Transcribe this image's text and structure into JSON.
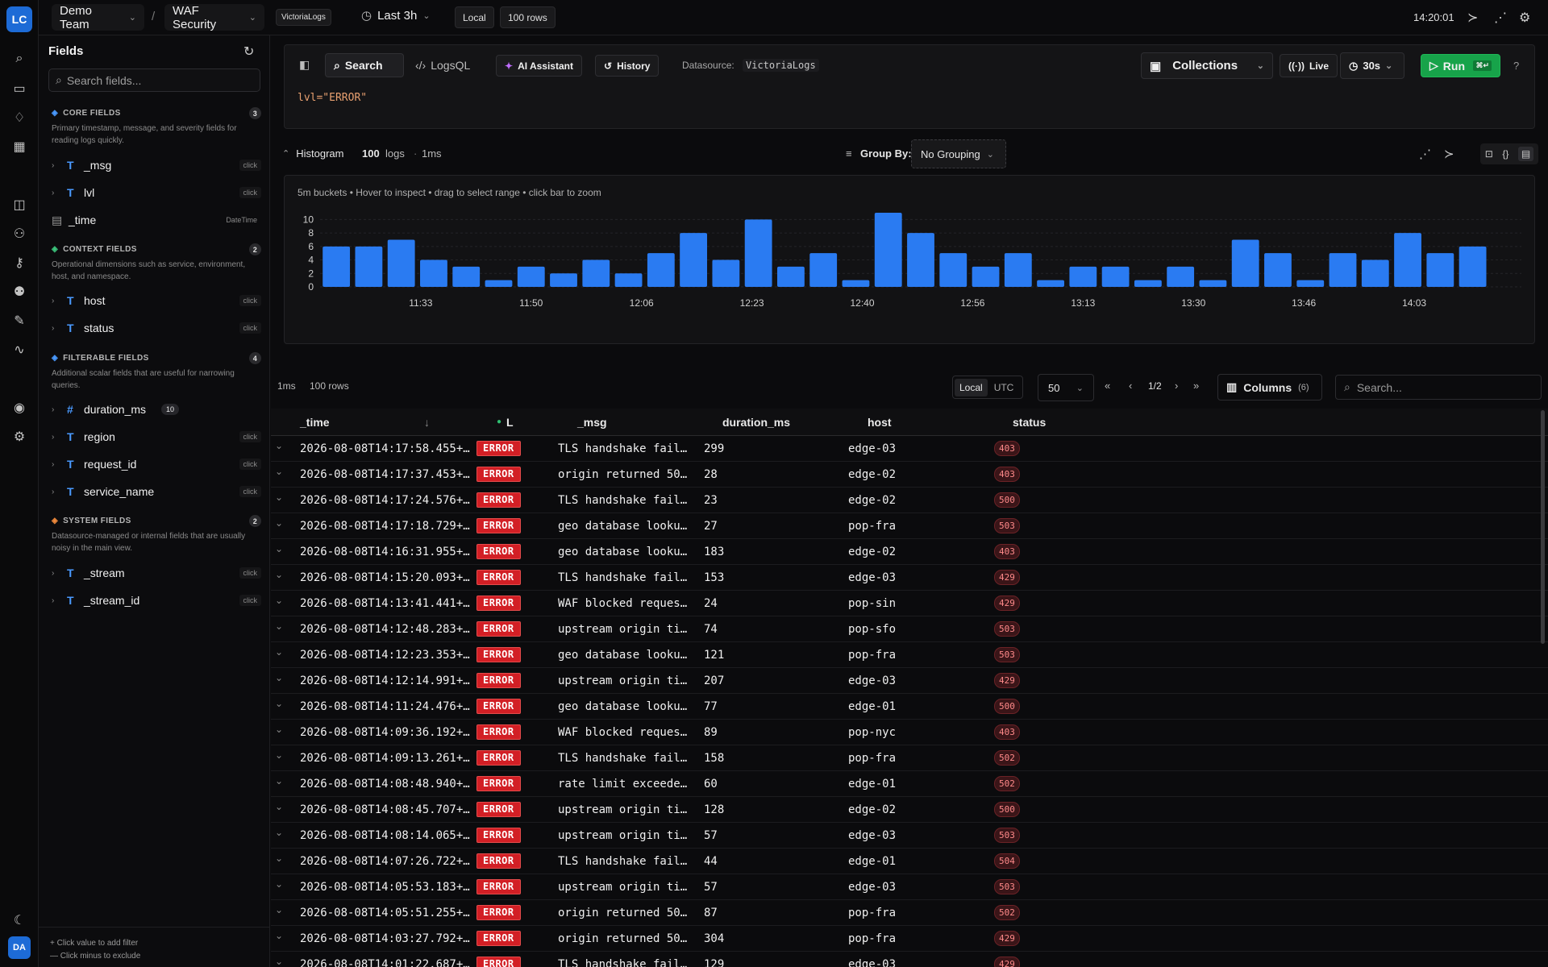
{
  "app": {
    "logo": "LC",
    "user_initials": "DA"
  },
  "topbar": {
    "team": "Demo Team",
    "separator": "/",
    "dashboard": "WAF Security",
    "datasource_badge": "VictoriaLogs",
    "time_range": "Last 3h",
    "tz_badge": "Local",
    "rows_badge": "100 rows",
    "clock": "14:20:01"
  },
  "sidebar": {
    "title": "Fields",
    "search_placeholder": "Search fields...",
    "sections": [
      {
        "title": "CORE FIELDS",
        "count": "3",
        "desc": "Primary timestamp, message, and severity fields for reading logs quickly."
      },
      {
        "title": "CONTEXT FIELDS",
        "count": "2",
        "desc": "Operational dimensions such as service, environment, host, and namespace."
      },
      {
        "title": "FILTERABLE FIELDS",
        "count": "4",
        "desc": "Additional scalar fields that are useful for narrowing queries."
      },
      {
        "title": "SYSTEM FIELDS",
        "count": "2",
        "desc": "Datasource-managed or internal fields that are usually noisy in the main view."
      }
    ],
    "fields": [
      {
        "name": "_msg",
        "type": "T",
        "hint": "click"
      },
      {
        "name": "lvl",
        "type": "T",
        "hint": "click"
      },
      {
        "name": "_time",
        "type": "cal",
        "hint": "DateTime"
      },
      {
        "name": "host",
        "type": "T",
        "hint": "click"
      },
      {
        "name": "status",
        "type": "T",
        "hint": "click"
      },
      {
        "name": "duration_ms",
        "type": "#",
        "hint": "10"
      },
      {
        "name": "region",
        "type": "T",
        "hint": "click"
      },
      {
        "name": "request_id",
        "type": "T",
        "hint": "click"
      },
      {
        "name": "service_name",
        "type": "T",
        "hint": "click"
      },
      {
        "name": "_stream",
        "type": "T",
        "hint": "click"
      },
      {
        "name": "_stream_id",
        "type": "T",
        "hint": "click"
      }
    ],
    "footer_1": "Click value to add filter",
    "footer_2": "Click minus to exclude"
  },
  "query": {
    "tab_search": "Search",
    "tab_logsql": "LogsQL",
    "ai_label": "AI Assistant",
    "history_label": "History",
    "datasource_label": "Datasource:",
    "datasource_value": "VictoriaLogs",
    "collections_label": "Collections",
    "live_label": "Live",
    "interval_label": "30s",
    "run_label": "Run",
    "run_shortcut": "⌘↵",
    "text": "lvl=\"ERROR\""
  },
  "histogram": {
    "label": "Histogram",
    "count": "100",
    "count_unit": "logs",
    "duration": "1ms",
    "groupby_label": "Group By:",
    "groupby_value": "No Grouping",
    "hint": "5m buckets • Hover to inspect • drag to select range • click bar to zoom"
  },
  "chart_data": {
    "type": "bar",
    "categories": [
      "11:20",
      "11:25",
      "11:30",
      "11:35",
      "11:40",
      "11:45",
      "11:50",
      "11:55",
      "12:00",
      "12:05",
      "12:10",
      "12:15",
      "12:20",
      "12:25",
      "12:30",
      "12:35",
      "12:40",
      "12:45",
      "12:50",
      "12:55",
      "13:00",
      "13:05",
      "13:10",
      "13:15",
      "13:20",
      "13:25",
      "13:30",
      "13:35",
      "13:40",
      "13:45",
      "13:50",
      "13:55",
      "14:00",
      "14:05",
      "14:10",
      "14:15",
      "14:20"
    ],
    "values": [
      6,
      6,
      7,
      4,
      3,
      1,
      3,
      2,
      4,
      2,
      5,
      8,
      4,
      10,
      3,
      5,
      1,
      11,
      8,
      5,
      3,
      5,
      1,
      3,
      3,
      1,
      3,
      1,
      7,
      5,
      1,
      5,
      4,
      8,
      5,
      6,
      0
    ],
    "x_tick_labels": [
      "11:33",
      "11:50",
      "12:06",
      "12:23",
      "12:40",
      "12:56",
      "13:13",
      "13:30",
      "13:46",
      "14:03"
    ],
    "y_ticks": [
      0,
      2,
      4,
      6,
      8,
      10
    ],
    "ylim": [
      0,
      11
    ],
    "color": "#2a7bf2",
    "grid": true
  },
  "table_toolbar": {
    "duration": "1ms",
    "rows": "100 rows",
    "tz_local": "Local",
    "tz_utc": "UTC",
    "page_size": "50",
    "page": "1/2",
    "columns_label": "Columns",
    "columns_count": "(6)",
    "search_placeholder": "Search..."
  },
  "table": {
    "columns": [
      "_time",
      "L",
      "_msg",
      "duration_ms",
      "host",
      "status"
    ],
    "rows": [
      [
        "2026-08-08T14:17:58.455+…",
        "ERROR",
        "TLS handshake fail…",
        "299",
        "edge-03",
        "403"
      ],
      [
        "2026-08-08T14:17:37.453+…",
        "ERROR",
        "origin returned 50…",
        "28",
        "edge-02",
        "403"
      ],
      [
        "2026-08-08T14:17:24.576+…",
        "ERROR",
        "TLS handshake fail…",
        "23",
        "edge-02",
        "500"
      ],
      [
        "2026-08-08T14:17:18.729+…",
        "ERROR",
        "geo database looku…",
        "27",
        "pop-fra",
        "503"
      ],
      [
        "2026-08-08T14:16:31.955+…",
        "ERROR",
        "geo database looku…",
        "183",
        "edge-02",
        "403"
      ],
      [
        "2026-08-08T14:15:20.093+…",
        "ERROR",
        "TLS handshake fail…",
        "153",
        "edge-03",
        "429"
      ],
      [
        "2026-08-08T14:13:41.441+…",
        "ERROR",
        "WAF blocked reques…",
        "24",
        "pop-sin",
        "429"
      ],
      [
        "2026-08-08T14:12:48.283+…",
        "ERROR",
        "upstream origin ti…",
        "74",
        "pop-sfo",
        "503"
      ],
      [
        "2026-08-08T14:12:23.353+…",
        "ERROR",
        "geo database looku…",
        "121",
        "pop-fra",
        "503"
      ],
      [
        "2026-08-08T14:12:14.991+…",
        "ERROR",
        "upstream origin ti…",
        "207",
        "edge-03",
        "429"
      ],
      [
        "2026-08-08T14:11:24.476+…",
        "ERROR",
        "geo database looku…",
        "77",
        "edge-01",
        "500"
      ],
      [
        "2026-08-08T14:09:36.192+…",
        "ERROR",
        "WAF blocked reques…",
        "89",
        "pop-nyc",
        "403"
      ],
      [
        "2026-08-08T14:09:13.261+…",
        "ERROR",
        "TLS handshake fail…",
        "158",
        "pop-fra",
        "502"
      ],
      [
        "2026-08-08T14:08:48.940+…",
        "ERROR",
        "rate limit exceede…",
        "60",
        "edge-01",
        "502"
      ],
      [
        "2026-08-08T14:08:45.707+…",
        "ERROR",
        "upstream origin ti…",
        "128",
        "edge-02",
        "500"
      ],
      [
        "2026-08-08T14:08:14.065+…",
        "ERROR",
        "upstream origin ti…",
        "57",
        "edge-03",
        "503"
      ],
      [
        "2026-08-08T14:07:26.722+…",
        "ERROR",
        "TLS handshake fail…",
        "44",
        "edge-01",
        "504"
      ],
      [
        "2026-08-08T14:05:53.183+…",
        "ERROR",
        "upstream origin ti…",
        "57",
        "edge-03",
        "503"
      ],
      [
        "2026-08-08T14:05:51.255+…",
        "ERROR",
        "origin returned 50…",
        "87",
        "pop-fra",
        "502"
      ],
      [
        "2026-08-08T14:03:27.792+…",
        "ERROR",
        "origin returned 50…",
        "304",
        "pop-fra",
        "429"
      ],
      [
        "2026-08-08T14:01:22.687+…",
        "ERROR",
        "TLS handshake fail…",
        "129",
        "edge-03",
        "429"
      ]
    ]
  }
}
